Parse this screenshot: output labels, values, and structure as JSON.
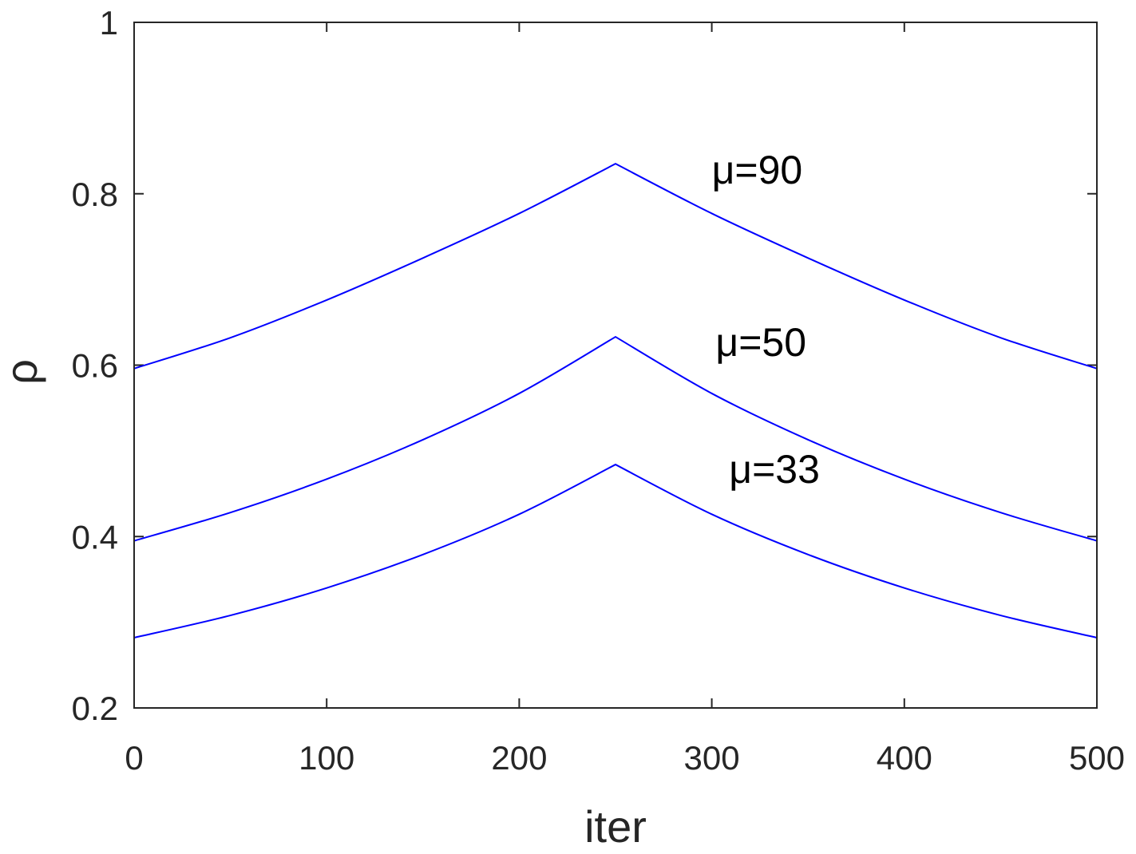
{
  "chart_data": {
    "type": "line",
    "title": "",
    "xlabel": "iter",
    "ylabel": "ρ",
    "xlim": [
      0,
      500
    ],
    "ylim": [
      0.2,
      1
    ],
    "xticks": [
      0,
      100,
      200,
      300,
      400,
      500
    ],
    "xtick_labels": [
      "0",
      "100",
      "200",
      "300",
      "400",
      "500"
    ],
    "yticks": [
      0.2,
      0.4,
      0.6,
      0.8,
      1
    ],
    "ytick_labels": [
      "0.2",
      "0.4",
      "0.6",
      "0.8",
      "1"
    ],
    "grid": false,
    "line_color": "#0000ff",
    "series": [
      {
        "x": [
          0,
          50,
          100,
          150,
          200,
          250,
          300,
          350,
          400,
          450,
          500
        ],
        "y": [
          0.596,
          0.632,
          0.676,
          0.725,
          0.777,
          0.835,
          0.777,
          0.725,
          0.676,
          0.632,
          0.596
        ]
      },
      {
        "x": [
          0,
          50,
          100,
          150,
          200,
          250,
          300,
          350,
          400,
          450,
          500
        ],
        "y": [
          0.395,
          0.428,
          0.467,
          0.513,
          0.567,
          0.633,
          0.567,
          0.513,
          0.467,
          0.428,
          0.395
        ]
      },
      {
        "x": [
          0,
          50,
          100,
          150,
          200,
          250,
          300,
          350,
          400,
          450,
          500
        ],
        "y": [
          0.282,
          0.308,
          0.34,
          0.379,
          0.426,
          0.484,
          0.426,
          0.379,
          0.34,
          0.308,
          0.282
        ]
      }
    ],
    "annotations": [
      {
        "text": "μ=90",
        "x": 300,
        "y": 0.835
      },
      {
        "text": "μ=50",
        "x": 302,
        "y": 0.634
      },
      {
        "text": "μ=33",
        "x": 309,
        "y": 0.486
      }
    ]
  }
}
